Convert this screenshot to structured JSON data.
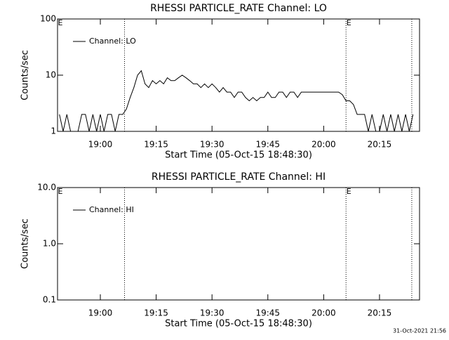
{
  "chart_data": [
    {
      "type": "line",
      "title": "RHESSI PARTICLE_RATE Channel: LO",
      "xlabel": "Start Time (05-Oct-15 18:48:30)",
      "ylabel": "Counts/sec",
      "log_y": true,
      "ylim": [
        1,
        100
      ],
      "yticks": [
        1,
        10,
        100
      ],
      "xlim": [
        "18:48:30",
        "20:25:45"
      ],
      "xticks": [
        "19:00",
        "19:15",
        "19:30",
        "19:45",
        "20:00",
        "20:15"
      ],
      "vlines": [
        "19:06:30",
        "20:06:00",
        "20:23:40"
      ],
      "flags": [
        {
          "x": "18:49:15",
          "label": "E"
        },
        {
          "x": "20:06:45",
          "label": "E"
        }
      ],
      "x": [
        "18:49",
        "18:50",
        "18:51",
        "18:52",
        "18:53",
        "18:54",
        "18:55",
        "18:56",
        "18:57",
        "18:58",
        "18:59",
        "19:00",
        "19:01",
        "19:02",
        "19:03",
        "19:04",
        "19:05",
        "19:06",
        "19:07",
        "19:08",
        "19:09",
        "19:10",
        "19:11",
        "19:12",
        "19:13",
        "19:14",
        "19:15",
        "19:16",
        "19:17",
        "19:18",
        "19:19",
        "19:20",
        "19:21",
        "19:22",
        "19:23",
        "19:24",
        "19:25",
        "19:26",
        "19:27",
        "19:28",
        "19:29",
        "19:30",
        "19:31",
        "19:32",
        "19:33",
        "19:34",
        "19:35",
        "19:36",
        "19:37",
        "19:38",
        "19:39",
        "19:40",
        "19:41",
        "19:42",
        "19:43",
        "19:44",
        "19:45",
        "19:46",
        "19:47",
        "19:48",
        "19:49",
        "19:50",
        "19:51",
        "19:52",
        "19:53",
        "19:54",
        "19:55",
        "19:56",
        "19:57",
        "19:58",
        "19:59",
        "20:00",
        "20:01",
        "20:02",
        "20:03",
        "20:04",
        "20:05",
        "20:06",
        "20:07",
        "20:08",
        "20:09",
        "20:10",
        "20:11",
        "20:12",
        "20:13",
        "20:14",
        "20:15",
        "20:16",
        "20:17",
        "20:18",
        "20:19",
        "20:20",
        "20:21",
        "20:22",
        "20:23",
        "20:24"
      ],
      "series": [
        {
          "name": "Channel: LO",
          "color": "#000000",
          "values": [
            2,
            1,
            2,
            1,
            1,
            1,
            2,
            2,
            1,
            2,
            1,
            2,
            1,
            2,
            2,
            1,
            2,
            2,
            2.5,
            4,
            6,
            10,
            12,
            7,
            6,
            8,
            7,
            8,
            7,
            9,
            8,
            8,
            9,
            10,
            9,
            8,
            7,
            7,
            6,
            7,
            6,
            7,
            6,
            5,
            6,
            5,
            5,
            4,
            5,
            5,
            4,
            3.5,
            4,
            3.5,
            4,
            4,
            5,
            4,
            4,
            5,
            5,
            4,
            5,
            5,
            4,
            5,
            5,
            5,
            5,
            5,
            5,
            5,
            5,
            5,
            5,
            5,
            4.5,
            3.5,
            3.5,
            3,
            2,
            2,
            2,
            1,
            2,
            1,
            1,
            2,
            1,
            2,
            1,
            2,
            1,
            2,
            1,
            2
          ]
        }
      ]
    },
    {
      "type": "line",
      "title": "RHESSI PARTICLE_RATE Channel: HI",
      "xlabel": "Start Time (05-Oct-15 18:48:30)",
      "ylabel": "Counts/sec",
      "log_y": true,
      "ylim": [
        0.1,
        10
      ],
      "yticks": [
        0.1,
        {
          "value": 1,
          "label": "1.0"
        },
        {
          "value": 10,
          "label": "10.0"
        }
      ],
      "xlim": [
        "18:48:30",
        "20:25:45"
      ],
      "xticks": [
        "19:00",
        "19:15",
        "19:30",
        "19:45",
        "20:00",
        "20:15"
      ],
      "vlines": [
        "19:06:30",
        "20:06:00",
        "20:23:40"
      ],
      "flags": [
        {
          "x": "18:49:15",
          "label": "E"
        },
        {
          "x": "20:06:45",
          "label": "E"
        }
      ],
      "x": [],
      "series": [
        {
          "name": "Channel: HI",
          "color": "#000000",
          "values": []
        }
      ]
    }
  ],
  "footer": "31-Oct-2021 21:56"
}
